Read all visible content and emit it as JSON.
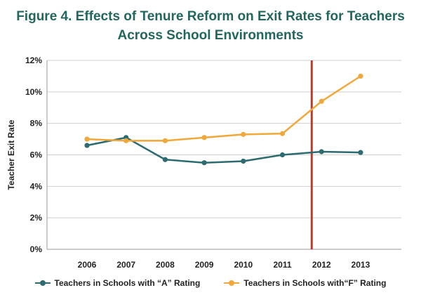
{
  "title_lines": [
    "Figure 4. Effects of Tenure Reform on Exit Rates for Teachers",
    "Across School Environments"
  ],
  "chart_data": {
    "type": "line",
    "title": "Figure 4. Effects of Tenure Reform on Exit Rates for Teachers Across School Environments",
    "xlabel": "",
    "ylabel": "Teacher Exit Rate",
    "categories": [
      "2006",
      "2007",
      "2008",
      "2009",
      "2010",
      "2011",
      "2012",
      "2013"
    ],
    "yticks": [
      "0%",
      "2%",
      "4%",
      "6%",
      "8%",
      "10%",
      "12%"
    ],
    "ylim": [
      0,
      12
    ],
    "grid": true,
    "legend_position": "bottom",
    "reference_line": {
      "x": 2011.75,
      "color": "#c0392b"
    },
    "series": [
      {
        "name": "Teachers in Schools with “A” Rating",
        "color": "#2c6b70",
        "values": [
          6.6,
          7.1,
          5.7,
          5.5,
          5.6,
          6.0,
          6.2,
          6.15
        ]
      },
      {
        "name": "Teachers in Schools with“F” Rating",
        "color": "#f0a83a",
        "values": [
          7.0,
          6.9,
          6.9,
          7.1,
          7.3,
          7.35,
          9.4,
          11.0
        ]
      }
    ]
  }
}
